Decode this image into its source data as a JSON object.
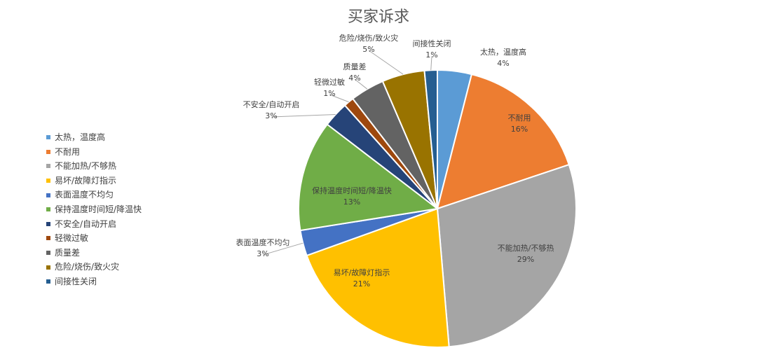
{
  "chart_data": {
    "type": "pie",
    "title": "买家诉求",
    "legend_position": "left",
    "slices": [
      {
        "label": "太热，温度高",
        "value": 4,
        "pct_label": "4%",
        "color": "#5B9BD5"
      },
      {
        "label": "不耐用",
        "value": 16,
        "pct_label": "16%",
        "color": "#ED7D31"
      },
      {
        "label": "不能加热/不够热",
        "value": 29,
        "pct_label": "29%",
        "color": "#A5A5A5"
      },
      {
        "label": "易坏/故障灯指示",
        "value": 21,
        "pct_label": "21%",
        "color": "#FFC000"
      },
      {
        "label": "表面温度不均匀",
        "value": 3,
        "pct_label": "3%",
        "color": "#4472C4"
      },
      {
        "label": "保持温度时间短/降温快",
        "value": 13,
        "pct_label": "13%",
        "color": "#70AD47"
      },
      {
        "label": "不安全/自动开启",
        "value": 3,
        "pct_label": "3%",
        "color": "#264478"
      },
      {
        "label": "轻微过敏",
        "value": 1.2,
        "pct_label": "1%",
        "color": "#9E480E"
      },
      {
        "label": "质量差",
        "value": 4,
        "pct_label": "4%",
        "color": "#636363"
      },
      {
        "label": "危险/烧伤/致火灾",
        "value": 5,
        "pct_label": "5%",
        "color": "#997300"
      },
      {
        "label": "间接性关闭",
        "value": 1.5,
        "pct_label": "1%",
        "color": "#255E91"
      }
    ]
  }
}
